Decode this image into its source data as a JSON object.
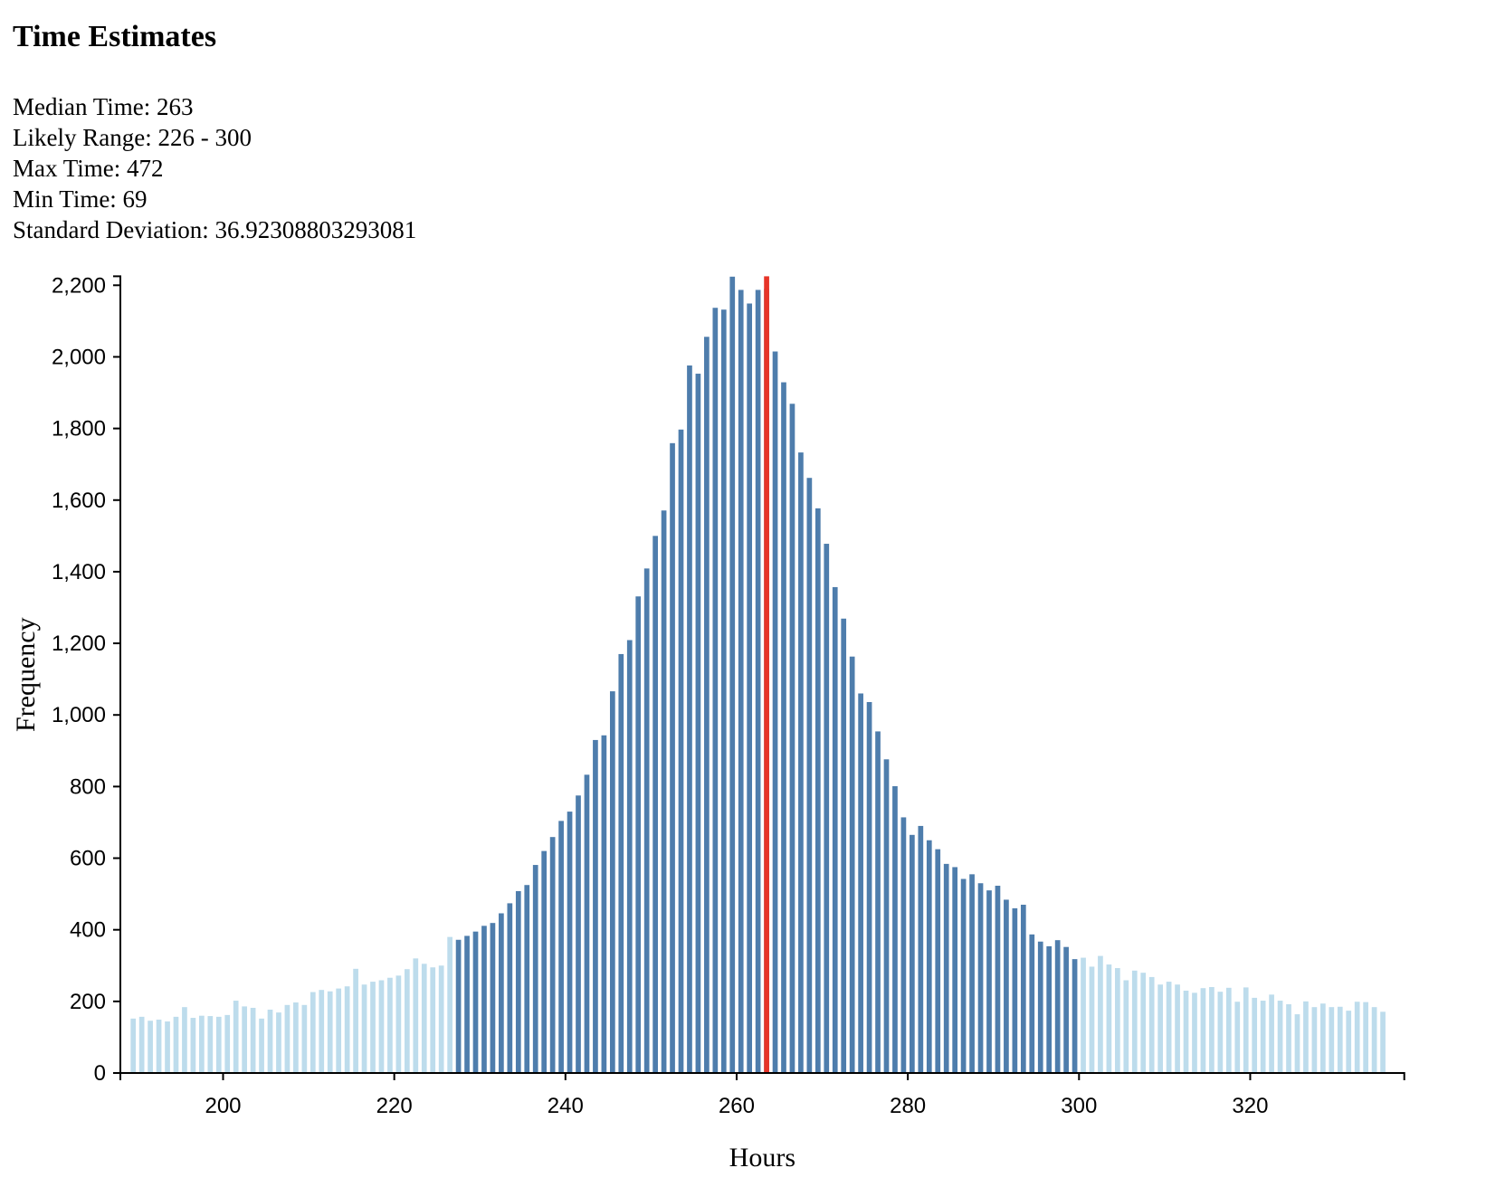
{
  "page": {
    "title": "Time Estimates"
  },
  "stats": {
    "lines": [
      "Median Time: 263",
      "Likely Range: 226 - 300",
      "Max Time: 472",
      "Min Time: 69",
      "Standard Deviation: 36.92308803293081"
    ]
  },
  "chart_data": {
    "type": "bar",
    "title": "Time Estimates",
    "xlabel": "Hours",
    "ylabel": "Frequency",
    "x_domain": [
      188,
      338
    ],
    "y_domain": [
      0,
      2225
    ],
    "x_ticks": [
      200,
      220,
      240,
      260,
      280,
      300,
      320
    ],
    "y_ticks": [
      0,
      200,
      400,
      600,
      800,
      1000,
      1200,
      1400,
      1600,
      1800,
      2000,
      2200
    ],
    "grid": false,
    "legend": null,
    "bin_size": 1,
    "first_bin": 189,
    "median": 263,
    "likely_range": [
      226,
      300
    ],
    "max_time": 472,
    "min_time": 69,
    "std_dev": 36.92308803293081,
    "highlight_bins": [
      227,
      299
    ],
    "median_line_bin": 263,
    "frequencies": [
      152,
      157,
      146,
      149,
      144,
      157,
      184,
      154,
      160,
      159,
      157,
      162,
      202,
      186,
      182,
      152,
      177,
      169,
      190,
      197,
      190,
      226,
      232,
      228,
      236,
      242,
      291,
      247,
      255,
      259,
      266,
      272,
      290,
      320,
      305,
      295,
      300,
      380,
      372,
      383,
      395,
      411,
      419,
      446,
      474,
      508,
      525,
      581,
      620,
      659,
      704,
      730,
      775,
      833,
      930,
      943,
      1066,
      1170,
      1209,
      1331,
      1409,
      1500,
      1571,
      1759,
      1797,
      1976,
      1953,
      2056,
      2137,
      2132,
      2224,
      2187,
      2149,
      2187,
      2190,
      2015,
      1929,
      1869,
      1733,
      1662,
      1577,
      1478,
      1357,
      1269,
      1163,
      1060,
      1036,
      954,
      876,
      801,
      714,
      665,
      690,
      650,
      625,
      584,
      575,
      542,
      555,
      530,
      510,
      523,
      484,
      460,
      470,
      387,
      367,
      354,
      371,
      352,
      318,
      322,
      297,
      327,
      303,
      293,
      259,
      286,
      280,
      268,
      247,
      255,
      247,
      230,
      224,
      237,
      240,
      227,
      238,
      199,
      239,
      210,
      202,
      219,
      202,
      192,
      164,
      200,
      184,
      194,
      184,
      185,
      174,
      199,
      198,
      184,
      171
    ],
    "colors": {
      "bar_light": "#bddcec",
      "bar_dark": "#4e7dac",
      "median_line": "#e73428",
      "axis": "#000000",
      "background": "#ffffff"
    }
  }
}
